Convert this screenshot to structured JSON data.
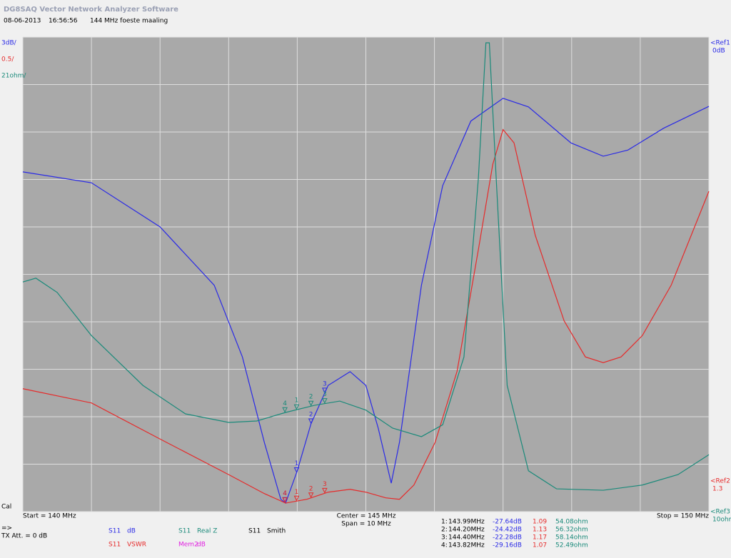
{
  "header": {
    "title": "DG8SAQ Vector Network Analyzer Software",
    "date": "08-06-2013",
    "time": "16:56:56",
    "note": "144 MHz foeste maaling"
  },
  "chart_data": {
    "type": "line",
    "xlim": [
      140,
      150
    ],
    "ylim": [
      0,
      10
    ],
    "xticks": [
      140,
      141,
      142,
      143,
      144,
      145,
      146,
      147,
      148,
      149,
      150
    ],
    "yticks": [
      0,
      1,
      2,
      3,
      4,
      5,
      6,
      7,
      8,
      9,
      10
    ],
    "grid": true,
    "scale_labels": [
      {
        "text": "3dB/",
        "color": "#2a2ae6"
      },
      {
        "text": "0.5/",
        "color": "#e62a2a"
      },
      {
        "text": "21ohm/",
        "color": "#1a8a7a"
      }
    ],
    "refs": [
      {
        "name": "<Ref1",
        "value": "0dB",
        "color": "#2a2ae6"
      },
      {
        "name": "<Ref2",
        "value": "1.3",
        "color": "#e62a2a"
      },
      {
        "name": "<Ref3",
        "value": "10ohm",
        "color": "#1a8a7a"
      }
    ],
    "series": [
      {
        "param": "S11",
        "name": "dB",
        "color": "#2a2ae6",
        "x": [
          140,
          141,
          142,
          142.79,
          143.2,
          143.52,
          143.76,
          143.83,
          144,
          144.2,
          144.45,
          144.77,
          145,
          145.18,
          145.37,
          145.49,
          145.81,
          146.12,
          146.53,
          147,
          147.37,
          147.99,
          148.46,
          148.82,
          149.34,
          150
        ],
        "values": [
          7.16,
          6.93,
          6.0,
          4.77,
          3.26,
          1.46,
          0.26,
          0.18,
          0.86,
          1.85,
          2.66,
          2.95,
          2.66,
          1.76,
          0.6,
          1.46,
          4.77,
          6.87,
          8.23,
          8.71,
          8.53,
          7.77,
          7.49,
          7.62,
          8.08,
          8.54
        ]
      },
      {
        "param": "S11",
        "name": "VSWR",
        "color": "#e62a2a",
        "x": [
          140,
          141,
          142,
          143,
          143.52,
          143.83,
          144.14,
          144.45,
          144.77,
          145,
          145.29,
          145.49,
          145.7,
          146.01,
          146.33,
          146.64,
          146.85,
          147,
          147.16,
          147.47,
          147.89,
          148.2,
          148.46,
          148.72,
          149.03,
          149.45,
          150
        ],
        "values": [
          2.59,
          2.29,
          1.53,
          0.78,
          0.38,
          0.18,
          0.26,
          0.41,
          0.47,
          0.41,
          0.29,
          0.26,
          0.56,
          1.46,
          2.96,
          5.52,
          7.32,
          8.05,
          7.77,
          5.82,
          4.02,
          3.26,
          3.14,
          3.26,
          3.71,
          4.77,
          6.75
        ]
      },
      {
        "param": "S11",
        "name": "Real Z",
        "color": "#1a8a7a",
        "x": [
          140,
          140.19,
          140.5,
          141,
          141.75,
          142.37,
          143,
          143.41,
          143.83,
          144.25,
          144.62,
          145,
          145.39,
          145.81,
          146.12,
          146.43,
          146.64,
          146.75,
          146.8,
          146.9,
          147.06,
          147.37,
          147.78,
          148.46,
          149.03,
          149.55,
          150
        ],
        "values": [
          4.84,
          4.92,
          4.62,
          3.71,
          2.66,
          2.06,
          1.88,
          1.91,
          2.09,
          2.24,
          2.33,
          2.14,
          1.76,
          1.58,
          1.83,
          3.26,
          7.02,
          9.88,
          9.88,
          7.02,
          2.66,
          0.86,
          0.48,
          0.45,
          0.56,
          0.78,
          1.2
        ]
      }
    ],
    "markers": [
      {
        "id": "1",
        "freq": 143.99
      },
      {
        "id": "2",
        "freq": 144.2
      },
      {
        "id": "3",
        "freq": 144.4
      },
      {
        "id": "4",
        "freq": 143.82
      }
    ],
    "cal": "Cal",
    "start": "Start = 140 MHz",
    "center": "Center = 145 MHz",
    "span": "Span = 10 MHz",
    "stop": "Stop = 150 MHz"
  },
  "footer": {
    "arrow": "=>",
    "tx_att": "TX Att.  = 0 dB",
    "legend": [
      {
        "param": "S11",
        "name": "dB",
        "color": "#2a2ae6"
      },
      {
        "param": "S11",
        "name": "VSWR",
        "color": "#e62a2a"
      },
      {
        "param": "S11",
        "name": "Real Z",
        "color": "#1a8a7a"
      },
      {
        "param": "S11",
        "name": "Smith",
        "color": "#000000"
      },
      {
        "param": "Mem2",
        "name": "dB",
        "color": "#e020e0"
      }
    ],
    "marker_table": [
      {
        "id": "1:",
        "freq": "143.99MHz",
        "db": "-27.64dB",
        "vswr": "1.09",
        "z": "54.08ohm"
      },
      {
        "id": "2:",
        "freq": "144.20MHz",
        "db": "-24.42dB",
        "vswr": "1.13",
        "z": "56.32ohm"
      },
      {
        "id": "3:",
        "freq": "144.40MHz",
        "db": "-22.28dB",
        "vswr": "1.17",
        "z": "58.14ohm"
      },
      {
        "id": "4:",
        "freq": "143.82MHz",
        "db": "-29.16dB",
        "vswr": "1.07",
        "z": "52.49ohm"
      }
    ]
  }
}
